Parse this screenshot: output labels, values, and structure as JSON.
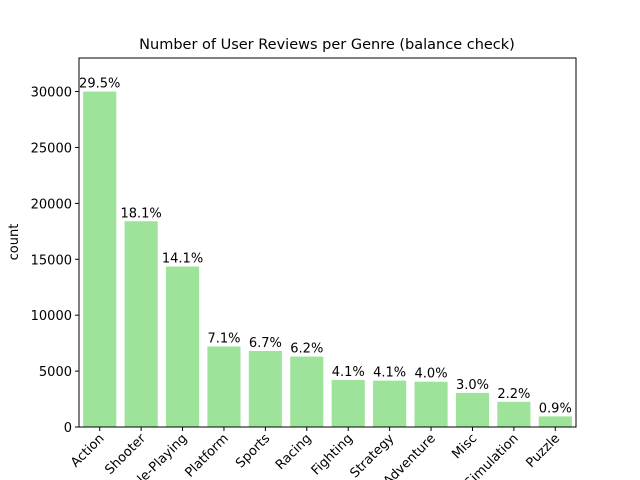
{
  "chart_data": {
    "type": "bar",
    "title": "Number of User Reviews per Genre (balance check)",
    "y_label": "count",
    "categories": [
      "Action",
      "Shooter",
      "Role-Playing",
      "Platform",
      "Sports",
      "Racing",
      "Fighting",
      "Strategy",
      "Adventure",
      "Misc",
      "Simulation",
      "Puzzle"
    ],
    "values": [
      30000,
      18400,
      14350,
      7200,
      6800,
      6300,
      4200,
      4150,
      4050,
      3050,
      2250,
      950
    ],
    "value_labels": [
      "29.5%",
      "18.1%",
      "14.1%",
      "7.1%",
      "6.7%",
      "6.2%",
      "4.1%",
      "4.1%",
      "4.0%",
      "3.0%",
      "2.2%",
      "0.9%"
    ],
    "color": "#9de39a",
    "ylim": [
      0,
      33000
    ],
    "yticks": [
      0,
      5000,
      10000,
      15000,
      20000,
      25000,
      30000
    ],
    "grid": false
  }
}
